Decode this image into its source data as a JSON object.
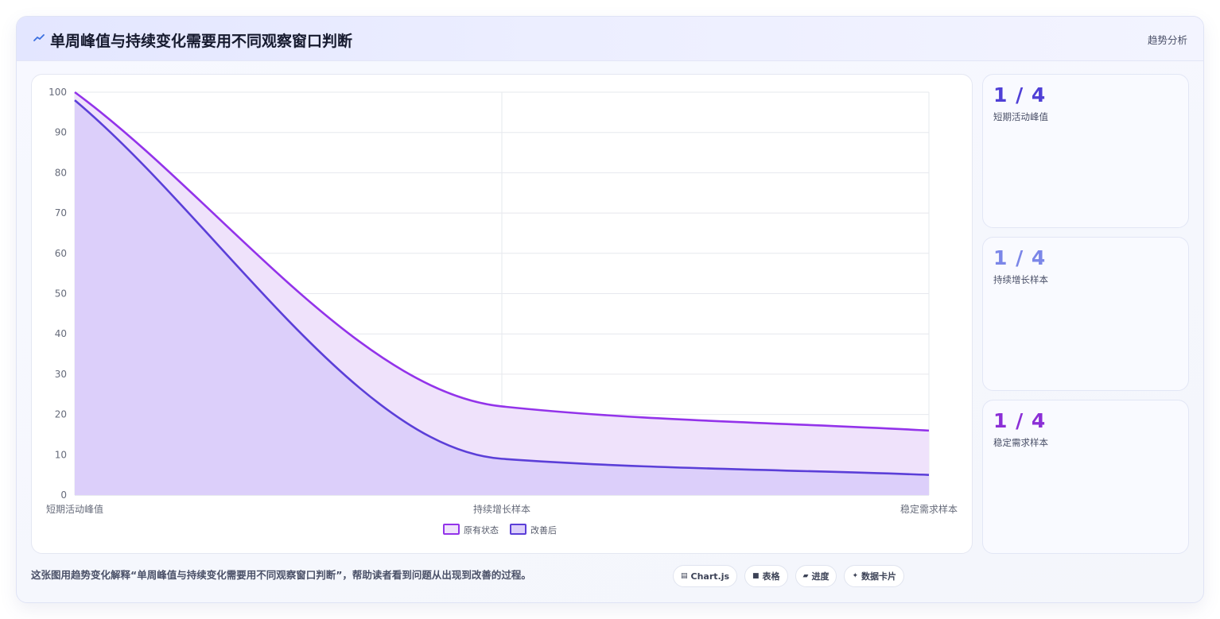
{
  "header": {
    "icon": "trend-icon",
    "title": "单周峰值与持续变化需要用不同观察窗口判断",
    "tag": "趋势分析"
  },
  "colors": {
    "original": "#9333ea",
    "improved": "#5b3fd8",
    "original_fill": "#efe2fb",
    "improved_fill": "#dccffa",
    "card_blue": "#4f3fd6",
    "card_light": "#7b86e8",
    "card_purple": "#8b2fd6"
  },
  "chart_data": {
    "type": "area",
    "categories": [
      "短期活动峰值",
      "持续增长样本",
      "稳定需求样本"
    ],
    "series": [
      {
        "name": "原有状态",
        "values": [
          100,
          22,
          16
        ]
      },
      {
        "name": "改善后",
        "values": [
          98,
          9,
          5
        ]
      }
    ],
    "ylim": [
      0,
      100
    ],
    "yticks": [
      0,
      10,
      20,
      30,
      40,
      50,
      60,
      70,
      80,
      90,
      100
    ],
    "grid": true,
    "legend_position": "bottom",
    "smooth": true
  },
  "side_cards": [
    {
      "value": "1 / 4",
      "label": "短期活动峰值"
    },
    {
      "value": "1 / 4",
      "label": "持续增长样本"
    },
    {
      "value": "1 / 4",
      "label": "稳定需求样本"
    }
  ],
  "caption": "这张图用趋势变化解释“单周峰值与持续变化需要用不同观察窗口判断”，帮助读者看到问题从出现到改善的过程。",
  "chips": [
    {
      "icon": "chart-icon",
      "label": "Chart.js"
    },
    {
      "icon": "table-icon",
      "label": "表格"
    },
    {
      "icon": "progress-icon",
      "label": "进度"
    },
    {
      "icon": "sparkle-icon",
      "label": "数据卡片"
    }
  ]
}
